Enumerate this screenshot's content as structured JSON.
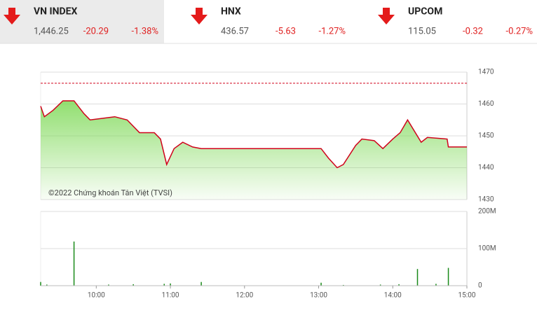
{
  "header": {
    "indices": [
      {
        "name": "VN INDEX",
        "value": "1,446.25",
        "change": "-20.29",
        "percent": "-1.38%"
      },
      {
        "name": "HNX",
        "value": "436.57",
        "change": "-5.63",
        "percent": "-1.27%"
      },
      {
        "name": "UPCOM",
        "value": "115.05",
        "change": "-0.32",
        "percent": "-0.27%"
      }
    ]
  },
  "chart_data": [
    {
      "type": "line",
      "annotation": "©2022 Chứng khoán Tân Việt (TVSI)",
      "x": [
        "09:15",
        "09:18",
        "09:25",
        "09:33",
        "09:42",
        "09:50",
        "09:55",
        "10:05",
        "10:15",
        "10:25",
        "10:35",
        "10:47",
        "10:52",
        "10:57",
        "11:03",
        "11:10",
        "11:18",
        "11:25",
        "13:02",
        "13:08",
        "13:15",
        "13:20",
        "13:30",
        "13:35",
        "13:45",
        "13:52",
        "14:00",
        "14:06",
        "14:12",
        "14:23",
        "14:28",
        "14:44",
        "14:45",
        "15:00"
      ],
      "values": [
        1459.3,
        1456,
        1458,
        1461,
        1461,
        1457,
        1455,
        1455.5,
        1456,
        1455,
        1451,
        1451,
        1449,
        1441,
        1446,
        1448,
        1446.5,
        1446,
        1446,
        1443,
        1440,
        1441,
        1447,
        1449,
        1448.5,
        1446,
        1449,
        1451,
        1455,
        1448,
        1449.5,
        1449,
        1446.5,
        1446.5
      ],
      "color": "#d0021b",
      "reference": 1466.5,
      "reference_color": "#d0021b",
      "xlim": [
        "09:15",
        "15:00"
      ],
      "ylim": [
        1430,
        1470
      ],
      "yticks": [
        1430,
        1440,
        1450,
        1460,
        1470
      ],
      "grid": true
    },
    {
      "type": "bar",
      "x": [
        "09:15",
        "09:20",
        "09:42",
        "10:10",
        "10:30",
        "10:55",
        "11:00",
        "11:25",
        "13:02",
        "13:20",
        "13:50",
        "14:05",
        "14:20",
        "14:35",
        "14:45"
      ],
      "values": [
        10,
        3,
        119,
        3,
        4,
        5,
        6,
        10,
        8,
        2,
        3,
        4,
        45,
        5,
        48
      ],
      "color": "#1a8a1a",
      "xlim": [
        "09:15",
        "15:00"
      ],
      "ylim": [
        0,
        200
      ],
      "yticks": [
        0,
        {
          "value": 100,
          "label": "100M"
        },
        {
          "value": 200,
          "label": "200M"
        }
      ],
      "xticks": [
        "10:00",
        "11:00",
        "12:00",
        "13:00",
        "14:00",
        "15:00"
      ],
      "grid": true
    }
  ]
}
